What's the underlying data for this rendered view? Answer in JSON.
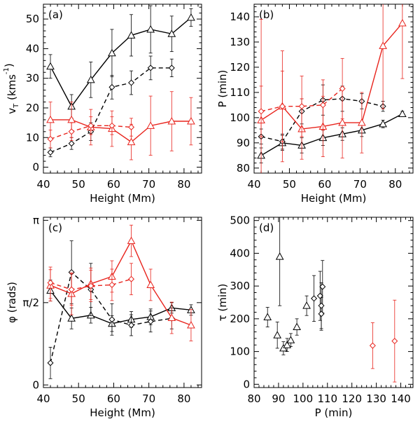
{
  "colors": {
    "black": "#000000",
    "red": "#e8231c",
    "axis": "#000000"
  },
  "chart_data": [
    {
      "panel": "(a)",
      "type": "line",
      "xlabel": "Height (Mm)",
      "ylabel": "v_T (kms^-1)",
      "ylabel_main": "v",
      "ylabel_sub": "T",
      "ylabel_rest": " (kms",
      "ylabel_sup": "-1",
      "ylabel_end": ")",
      "xlim": [
        40,
        85
      ],
      "ylim": [
        -2,
        55
      ],
      "xticks": [
        40,
        50,
        60,
        70,
        80
      ],
      "xtick_labels": [
        "40",
        "50",
        "60",
        "70",
        "80"
      ],
      "yticks": [
        0,
        10,
        20,
        30,
        40,
        50
      ],
      "ytick_labels": [
        "0",
        "10",
        "20",
        "30",
        "40",
        "50"
      ],
      "series": [
        {
          "name": "black-solid-triangle",
          "color": "black",
          "dash": false,
          "marker": "triangle",
          "x": [
            42,
            48,
            53.5,
            59.5,
            65,
            70.5,
            76.5,
            82
          ],
          "y": [
            34,
            20.5,
            29.5,
            38.5,
            44.5,
            46.5,
            45,
            50.5
          ],
          "err": [
            4,
            4,
            6,
            8,
            7,
            8,
            6,
            3
          ]
        },
        {
          "name": "black-dashed-diamond",
          "color": "black",
          "dash": true,
          "marker": "diamond",
          "x": [
            42,
            48,
            53.5,
            59.5,
            65,
            70.5,
            76.5
          ],
          "y": [
            5,
            8,
            12,
            27,
            28.5,
            33.5,
            33.5
          ],
          "err": [
            1.5,
            2,
            3,
            4,
            4,
            4,
            3
          ]
        },
        {
          "name": "red-solid-triangle",
          "color": "red",
          "dash": false,
          "marker": "triangle",
          "x": [
            42,
            48,
            53.5,
            59.5,
            65,
            70.5,
            76.5,
            82
          ],
          "y": [
            16,
            16,
            13.5,
            13,
            8.5,
            14,
            15.5,
            15.5
          ],
          "err": [
            6,
            6,
            6,
            6,
            6,
            10,
            10,
            8
          ]
        },
        {
          "name": "red-dashed-diamond",
          "color": "red",
          "dash": true,
          "marker": "diamond",
          "x": [
            42,
            48,
            53.5,
            59.5,
            65
          ],
          "y": [
            9.5,
            12,
            14,
            14,
            13.5
          ],
          "err": [
            3,
            3,
            3,
            3,
            3
          ]
        }
      ]
    },
    {
      "panel": "(b)",
      "type": "line",
      "xlabel": "Height (Mm)",
      "ylabel": "P (min)",
      "xlim": [
        40,
        85
      ],
      "ylim": [
        78,
        145
      ],
      "xticks": [
        40,
        50,
        60,
        70,
        80
      ],
      "xtick_labels": [
        "40",
        "50",
        "60",
        "70",
        "80"
      ],
      "yticks": [
        80,
        90,
        100,
        110,
        120,
        130,
        140
      ],
      "ytick_labels": [
        "80",
        "90",
        "100",
        "110",
        "120",
        "130",
        "140"
      ],
      "series": [
        {
          "name": "black-solid-triangle",
          "color": "black",
          "dash": false,
          "marker": "triangle",
          "x": [
            42,
            48,
            53.5,
            59.5,
            65,
            70.5,
            76.5,
            82
          ],
          "y": [
            85,
            90,
            89,
            92,
            93.5,
            95,
            97.5,
            101.5
          ],
          "err": [
            3,
            3,
            3,
            3,
            2.5,
            2.5,
            1.5,
            1
          ]
        },
        {
          "name": "black-dashed-diamond",
          "color": "black",
          "dash": true,
          "marker": "diamond",
          "x": [
            42,
            48,
            53.5,
            59.5,
            65,
            70.5,
            76.5
          ],
          "y": [
            92.5,
            90.5,
            102.5,
            107,
            107.5,
            106.5,
            104.5
          ],
          "err": [
            3,
            3,
            5,
            6,
            5,
            3,
            2
          ]
        },
        {
          "name": "red-solid-triangle",
          "color": "red",
          "dash": false,
          "marker": "triangle",
          "x": [
            42,
            48,
            53.5,
            59.5,
            65,
            70.5,
            76.5,
            82
          ],
          "y": [
            99,
            104.5,
            95.5,
            96.5,
            98,
            98,
            128.5,
            137.5
          ],
          "err": [
            40,
            22,
            12,
            12,
            14,
            12,
            25,
            22
          ]
        },
        {
          "name": "red-dashed-diamond",
          "color": "red",
          "dash": true,
          "marker": "diamond",
          "x": [
            42,
            48,
            53.5,
            59.5,
            65
          ],
          "y": [
            102.5,
            104.5,
            104.5,
            105,
            111.5
          ],
          "err": [
            10,
            14,
            12,
            10,
            12
          ]
        }
      ]
    },
    {
      "panel": "(c)",
      "type": "line",
      "xlabel": "Height (Mm)",
      "ylabel": "φ (rads)",
      "xlim": [
        40,
        85
      ],
      "ylim": [
        -0.05,
        3.2
      ],
      "xticks": [
        40,
        50,
        60,
        70,
        80
      ],
      "xtick_labels": [
        "40",
        "50",
        "60",
        "70",
        "80"
      ],
      "yticks": [
        0,
        1.5708,
        3.1416
      ],
      "ytick_labels": [
        "0",
        "π/2",
        "π"
      ],
      "series": [
        {
          "name": "black-solid-triangle",
          "color": "black",
          "dash": false,
          "marker": "triangle",
          "x": [
            42,
            48,
            53.5,
            59.5,
            65,
            70.5,
            76.5,
            82
          ],
          "y": [
            1.8,
            1.27,
            1.33,
            1.17,
            1.25,
            1.3,
            1.47,
            1.43
          ],
          "err": [
            0.2,
            0.2,
            0.15,
            0.15,
            0.15,
            0.15,
            0.1,
            0.1
          ]
        },
        {
          "name": "black-dashed-diamond",
          "color": "black",
          "dash": true,
          "marker": "diamond",
          "x": [
            42,
            48,
            53.5,
            59.5,
            65,
            70.5,
            76.5
          ],
          "y": [
            0.42,
            2.15,
            1.82,
            1.25,
            1.14,
            1.21,
            1.27
          ],
          "err": [
            0.3,
            0.6,
            0.5,
            0.3,
            0.2,
            0.2,
            0.2
          ]
        },
        {
          "name": "red-solid-triangle",
          "color": "red",
          "dash": false,
          "marker": "triangle",
          "x": [
            42,
            48,
            53.5,
            59.5,
            65,
            70.5,
            76.5,
            82
          ],
          "y": [
            1.9,
            1.74,
            1.93,
            2.07,
            2.75,
            1.91,
            1.28,
            1.14
          ],
          "err": [
            0.3,
            0.4,
            0.3,
            0.3,
            0.3,
            0.3,
            0.3,
            0.3
          ]
        },
        {
          "name": "red-dashed-diamond",
          "color": "red",
          "dash": true,
          "marker": "diamond",
          "x": [
            42,
            48,
            53.5,
            59.5,
            65
          ],
          "y": [
            1.95,
            1.82,
            1.89,
            1.91,
            2.02
          ],
          "err": [
            0.3,
            0.3,
            0.3,
            0.3,
            0.3
          ]
        }
      ]
    },
    {
      "panel": "(d)",
      "type": "scatter",
      "xlabel": "P (min)",
      "ylabel": "τ (min)",
      "xlim": [
        80,
        145
      ],
      "ylim": [
        -10,
        510
      ],
      "xticks": [
        80,
        90,
        100,
        110,
        120,
        130,
        140
      ],
      "xtick_labels": [
        "80",
        "90",
        "100",
        "110",
        "120",
        "130",
        "140"
      ],
      "yticks": [
        0,
        100,
        200,
        300,
        400,
        500
      ],
      "ytick_labels": [
        "0",
        "100",
        "200",
        "300",
        "400",
        "500"
      ],
      "series": [
        {
          "name": "black-triangle",
          "color": "black",
          "dash": null,
          "marker": "triangle",
          "x": [
            85.5,
            89.5,
            90.5,
            92,
            93.5,
            95,
            97.5,
            101.5
          ],
          "y": [
            205,
            150,
            390,
            110,
            120,
            135,
            175,
            240
          ],
          "err": [
            30,
            40,
            150,
            20,
            20,
            20,
            25,
            30
          ]
        },
        {
          "name": "black-diamond",
          "color": "black",
          "dash": null,
          "marker": "diamond",
          "x": [
            104.5,
            107,
            107.5,
            107.5,
            108
          ],
          "y": [
            262,
            270,
            240,
            215,
            298
          ],
          "err": [
            70,
            75,
            70,
            50,
            80
          ]
        },
        {
          "name": "red-diamond",
          "color": "red",
          "dash": null,
          "marker": "diamond",
          "x": [
            128.5,
            137.5
          ],
          "y": [
            118,
            132
          ],
          "err": [
            70,
            125
          ]
        }
      ]
    }
  ]
}
